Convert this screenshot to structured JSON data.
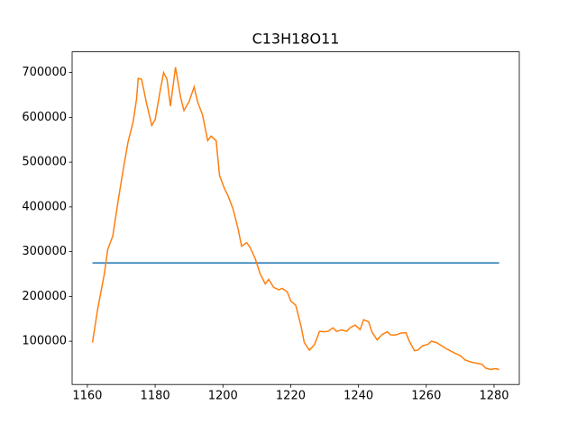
{
  "chart_data": {
    "type": "line",
    "title": "C13H18O11",
    "xlim": [
      1155.5,
      1287.45
    ],
    "ylim": [
      3360,
      746300
    ],
    "xticks": [
      1160,
      1180,
      1200,
      1220,
      1240,
      1260,
      1280
    ],
    "yticks": [
      100000,
      200000,
      300000,
      400000,
      500000,
      600000,
      700000
    ],
    "series": [
      {
        "color": "#1f77b4",
        "x": [
          1161.5,
          1281.5
        ],
        "values": [
          275000,
          275000
        ]
      },
      {
        "color": "#ff7f0e",
        "x": [
          1161.5,
          1163,
          1165,
          1166,
          1167.5,
          1169,
          1170.5,
          1172,
          1173.5,
          1174.5,
          1175,
          1176,
          1177.5,
          1179,
          1180,
          1181.5,
          1182.5,
          1183.5,
          1184.5,
          1186,
          1187.5,
          1188.5,
          1190,
          1191.5,
          1192.5,
          1194,
          1195.5,
          1196.5,
          1198,
          1199,
          1200.5,
          1201.5,
          1203,
          1204.5,
          1205.5,
          1207,
          1208,
          1209.5,
          1211,
          1212.5,
          1213.5,
          1215,
          1216.5,
          1217.5,
          1219,
          1220,
          1221.5,
          1223,
          1224,
          1225.5,
          1227,
          1228.5,
          1230,
          1231,
          1232.5,
          1233.5,
          1235,
          1236.5,
          1237.5,
          1239,
          1240.5,
          1241.5,
          1243,
          1244,
          1245.5,
          1247,
          1248.5,
          1249.5,
          1251,
          1252.5,
          1254,
          1255,
          1256.5,
          1257.5,
          1259,
          1260.5,
          1261.5,
          1263,
          1264.5,
          1266,
          1267,
          1268.5,
          1270,
          1271.5,
          1273,
          1274,
          1275.5,
          1276.5,
          1277.5,
          1279,
          1280.5,
          1281.5
        ],
        "values": [
          97000,
          170000,
          250000,
          305000,
          335000,
          410000,
          480000,
          545000,
          590000,
          640000,
          687000,
          685000,
          630000,
          582000,
          595000,
          660000,
          700000,
          685000,
          625000,
          712000,
          645000,
          615000,
          635000,
          668000,
          635000,
          605000,
          548000,
          558000,
          548000,
          470000,
          440000,
          425000,
          395000,
          350000,
          312000,
          320000,
          310000,
          285000,
          250000,
          228000,
          238000,
          220000,
          215000,
          218000,
          210000,
          190000,
          180000,
          135000,
          97000,
          80000,
          92000,
          122000,
          121000,
          122000,
          130000,
          122000,
          125000,
          122000,
          130000,
          136000,
          126000,
          148000,
          143000,
          120000,
          103000,
          115000,
          121000,
          114000,
          114000,
          118000,
          119000,
          100000,
          79000,
          80000,
          90000,
          93000,
          100000,
          97000,
          90000,
          83000,
          79000,
          73000,
          68000,
          58000,
          54000,
          52000,
          50000,
          48000,
          40000,
          37000,
          39000,
          37000
        ]
      }
    ]
  }
}
